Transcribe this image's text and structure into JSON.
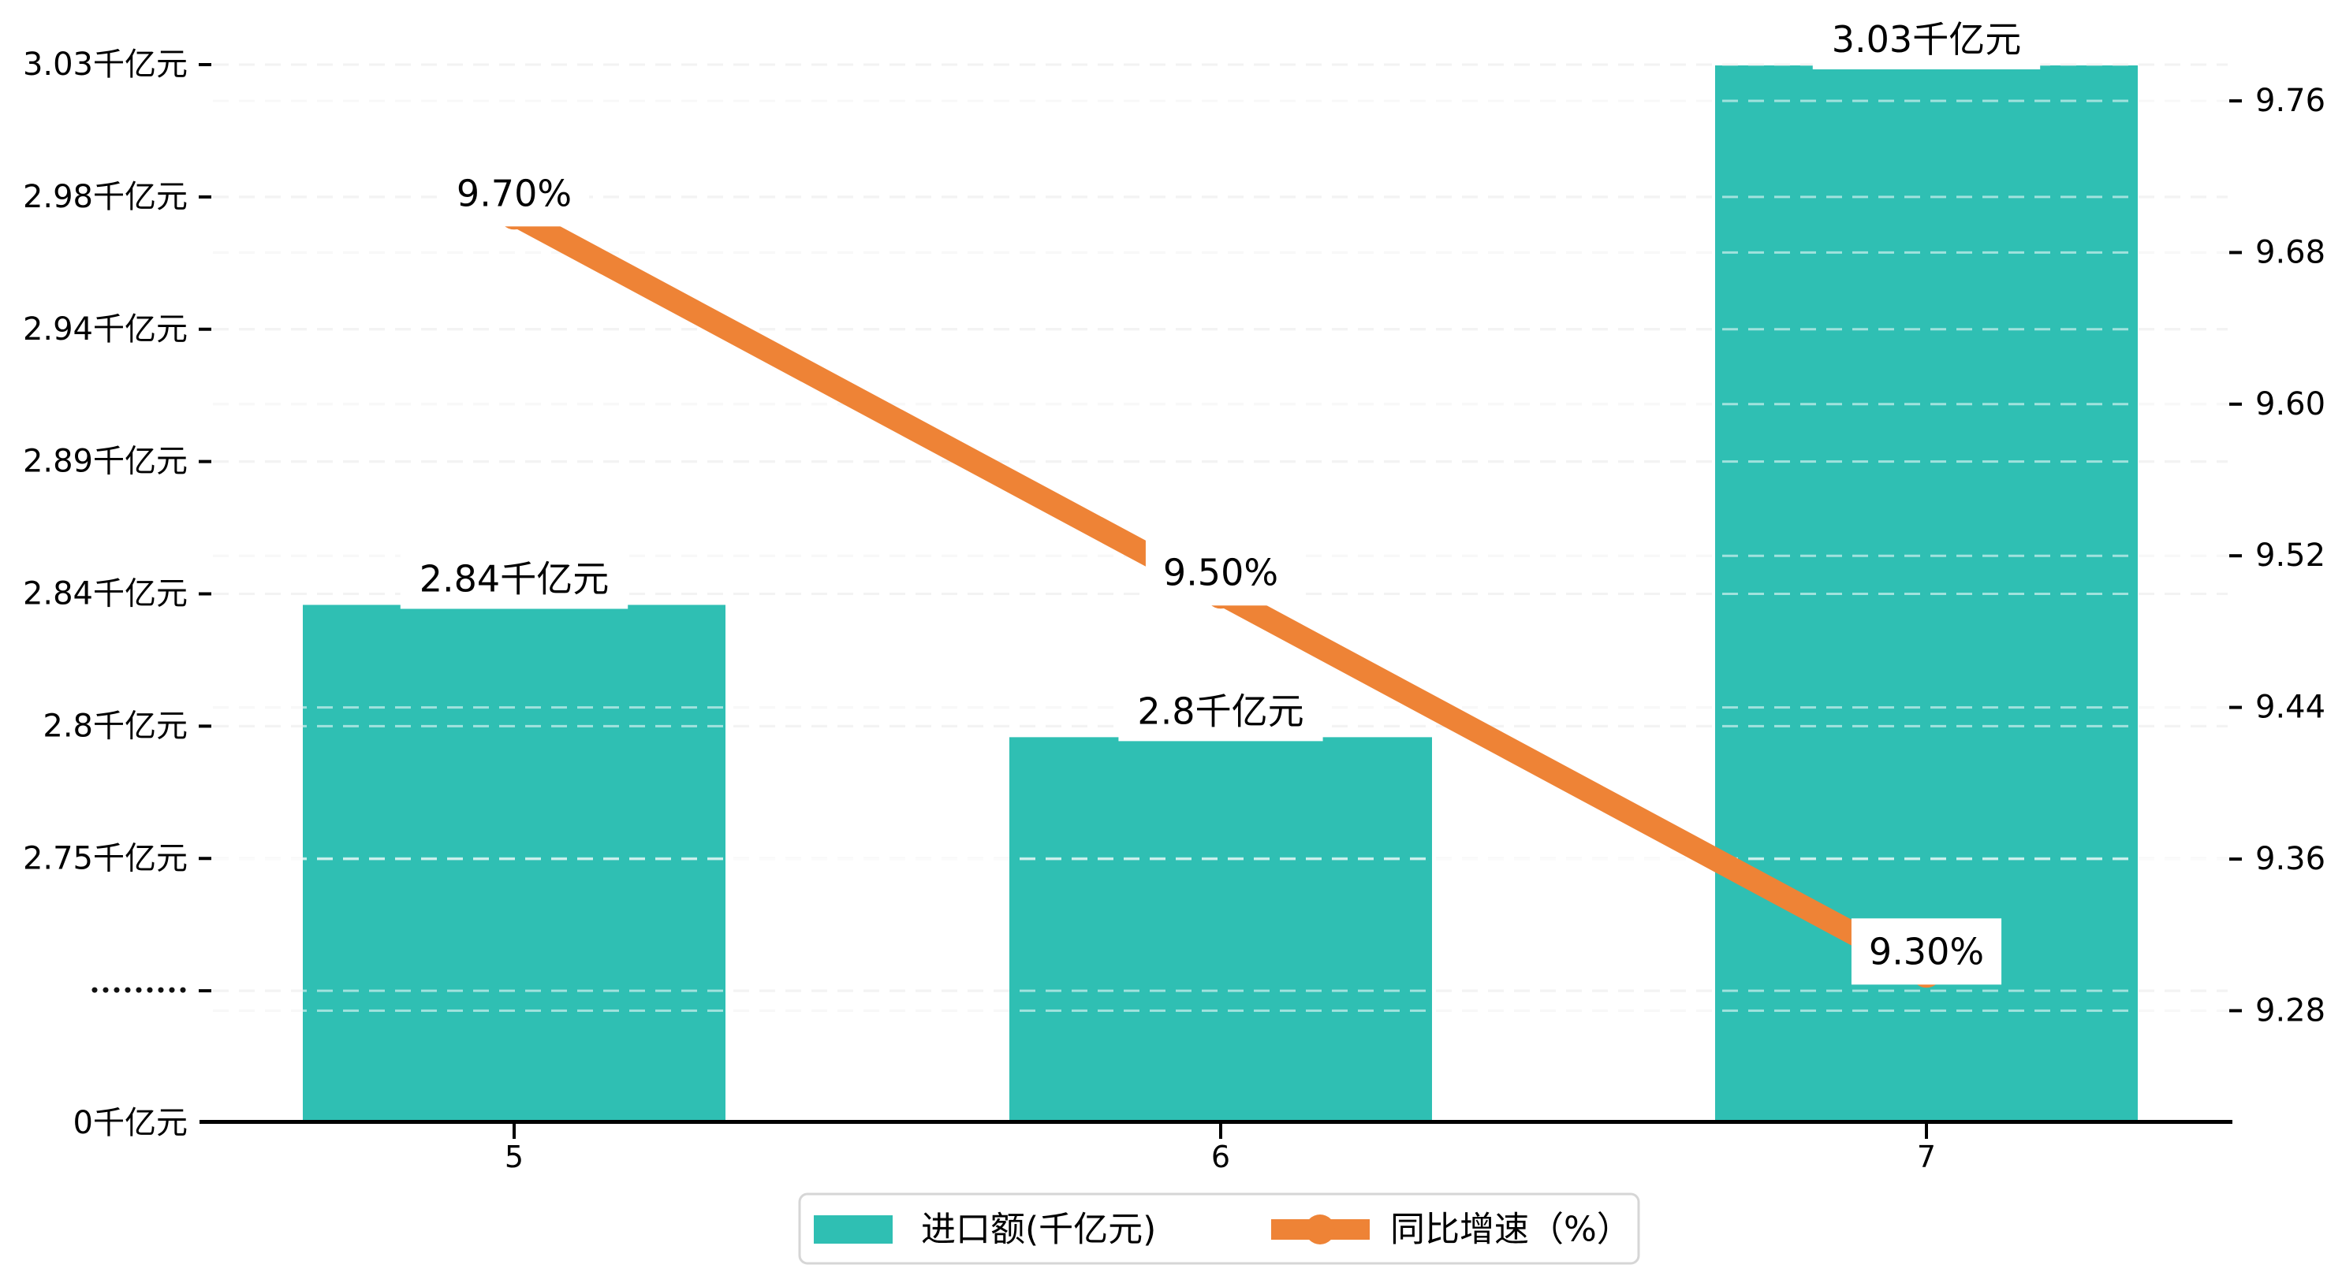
{
  "page": {
    "background": "#ffffff"
  },
  "chart_data": {
    "type": "bar",
    "subtype": "bar+line dual-axis combo",
    "categories": [
      "5",
      "6",
      "7"
    ],
    "series": [
      {
        "name": "进口额(千亿元)",
        "type": "bar",
        "axis": "left",
        "unit": "千亿元",
        "values": [
          2.84,
          2.8,
          3.03
        ],
        "data_labels": [
          "2.84千亿元",
          "2.8千亿元",
          "3.03千亿元"
        ],
        "color": "#2fbfb3"
      },
      {
        "name": "同比增速（%）",
        "type": "line",
        "axis": "right",
        "unit": "%",
        "values": [
          9.7,
          9.5,
          9.3
        ],
        "data_labels": [
          "9.70%",
          "9.50%",
          "9.30%"
        ],
        "color": "#ee8336"
      }
    ],
    "left_axis": {
      "ticks": [
        {
          "label": "0千亿元",
          "value": 0
        },
        {
          "label": "",
          "break": true
        },
        {
          "label": "2.75千亿元",
          "value": 2.75
        },
        {
          "label": "2.8千亿元",
          "value": 2.8
        },
        {
          "label": "2.84千亿元",
          "value": 2.84
        },
        {
          "label": "2.89千亿元",
          "value": 2.89
        },
        {
          "label": "2.94千亿元",
          "value": 2.94
        },
        {
          "label": "2.98千亿元",
          "value": 2.98
        },
        {
          "label": "3.03千亿元",
          "value": 3.03
        }
      ],
      "note": "axis break (dotted row) between 0 and 2.75, ticks evenly spaced at data values"
    },
    "right_axis": {
      "ticks": [
        "9.76",
        "9.68",
        "9.60",
        "9.52",
        "9.44",
        "9.36",
        "9.28"
      ],
      "top_value": 9.76,
      "step": 0.08
    },
    "x_axis": {
      "labels": [
        "5",
        "6",
        "7"
      ]
    },
    "grid": "dashed horizontal gridlines for both axes",
    "legend_position": "bottom-center",
    "title": ""
  },
  "legend": {
    "items": [
      {
        "label": "进口额(千亿元)",
        "marker": "bar-swatch",
        "color": "#2fbfb3"
      },
      {
        "label": "同比增速（%）",
        "marker": "line-dot",
        "color": "#ee8336"
      }
    ]
  },
  "colors": {
    "bar": "#2fbfb3",
    "line": "#ee8336",
    "grid_left": "#e4e4e4",
    "grid_right": "#efefef",
    "grid_over_bars": "rgba(255,255,255,0.55)",
    "axis_line": "#000000",
    "label_bg": "#ffffff",
    "text": "#000000",
    "legend_border": "#d6d6d6"
  }
}
